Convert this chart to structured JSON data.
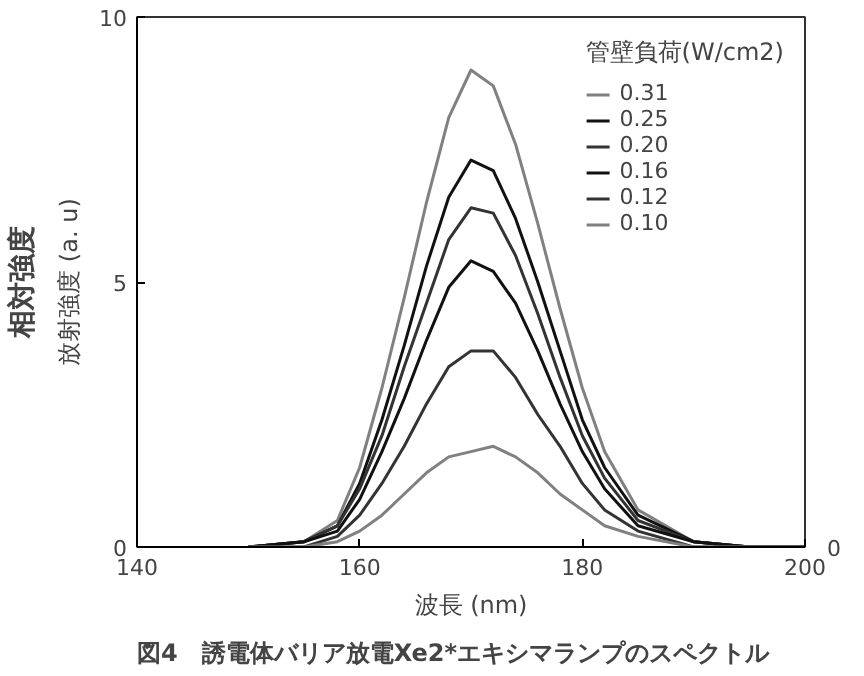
{
  "chart_data": {
    "type": "line",
    "title": "図4　誘電体バリア放電Xe2*エキシマランプのスペクトル",
    "xlabel": "波長 (nm)",
    "ylabel": "放射強度 (a. u)",
    "legend_title": "管壁負荷(W/cm2)",
    "annotations": [
      "相対強度",
      "0"
    ],
    "x": [
      150,
      155,
      158,
      160,
      162,
      164,
      166,
      168,
      170,
      172,
      174,
      176,
      178,
      180,
      182,
      185,
      190,
      195,
      200
    ],
    "series": [
      {
        "name": "0.31",
        "color": "#808080",
        "values": [
          0,
          0.1,
          0.5,
          1.5,
          3.0,
          4.7,
          6.5,
          8.1,
          9.0,
          8.7,
          7.6,
          6.1,
          4.5,
          3.0,
          1.8,
          0.7,
          0.1,
          0,
          0
        ]
      },
      {
        "name": "0.25",
        "color": "#111111",
        "values": [
          0,
          0.1,
          0.4,
          1.2,
          2.4,
          3.8,
          5.3,
          6.6,
          7.3,
          7.1,
          6.2,
          5.0,
          3.7,
          2.4,
          1.5,
          0.6,
          0.1,
          0,
          0
        ]
      },
      {
        "name": "0.20",
        "color": "#333333",
        "values": [
          0,
          0.1,
          0.4,
          1.1,
          2.1,
          3.4,
          4.6,
          5.8,
          6.4,
          6.3,
          5.5,
          4.4,
          3.2,
          2.1,
          1.3,
          0.5,
          0.1,
          0,
          0
        ]
      },
      {
        "name": "0.16",
        "color": "#111111",
        "values": [
          0,
          0.1,
          0.3,
          0.9,
          1.8,
          2.8,
          3.9,
          4.9,
          5.4,
          5.2,
          4.6,
          3.7,
          2.7,
          1.8,
          1.1,
          0.4,
          0.1,
          0,
          0
        ]
      },
      {
        "name": "0.12",
        "color": "#333333",
        "values": [
          0,
          0,
          0.2,
          0.6,
          1.2,
          1.9,
          2.7,
          3.4,
          3.7,
          3.7,
          3.2,
          2.5,
          1.9,
          1.2,
          0.7,
          0.3,
          0,
          0,
          0
        ]
      },
      {
        "name": "0.10",
        "color": "#808080",
        "values": [
          0,
          0,
          0.1,
          0.3,
          0.6,
          1.0,
          1.4,
          1.7,
          1.8,
          1.9,
          1.7,
          1.4,
          1.0,
          0.7,
          0.4,
          0.2,
          0,
          0,
          0
        ]
      }
    ],
    "xlim": [
      140,
      200
    ],
    "ylim": [
      0,
      10
    ],
    "xticks": [
      140,
      160,
      180,
      200
    ],
    "yticks": [
      0,
      5,
      10
    ],
    "grid": false,
    "legend": "top right",
    "marker": "none",
    "line_style": "solid"
  }
}
